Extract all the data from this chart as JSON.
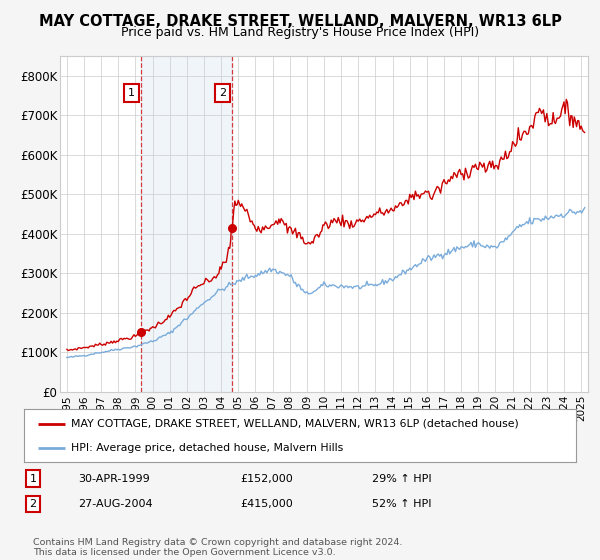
{
  "title": "MAY COTTAGE, DRAKE STREET, WELLAND, MALVERN, WR13 6LP",
  "subtitle": "Price paid vs. HM Land Registry's House Price Index (HPI)",
  "ylim": [
    0,
    850000
  ],
  "yticks": [
    0,
    100000,
    200000,
    300000,
    400000,
    500000,
    600000,
    700000,
    800000
  ],
  "ytick_labels": [
    "£0",
    "£100K",
    "£200K",
    "£300K",
    "£400K",
    "£500K",
    "£600K",
    "£700K",
    "£800K"
  ],
  "xlim_start": 1994.6,
  "xlim_end": 2025.4,
  "xtick_years": [
    1995,
    1996,
    1997,
    1998,
    1999,
    2000,
    2001,
    2002,
    2003,
    2004,
    2005,
    2006,
    2007,
    2008,
    2009,
    2010,
    2011,
    2012,
    2013,
    2014,
    2015,
    2016,
    2017,
    2018,
    2019,
    2020,
    2021,
    2022,
    2023,
    2024,
    2025
  ],
  "property_color": "#cc0000",
  "hpi_color": "#7aacdb",
  "background_color": "#f5f5f5",
  "sale1_x": 1999.33,
  "sale1_y": 152000,
  "sale2_x": 2004.65,
  "sale2_y": 415000,
  "shade_x1": 1999.33,
  "shade_x2": 2004.65,
  "legend_property": "MAY COTTAGE, DRAKE STREET, WELLAND, MALVERN, WR13 6LP (detached house)",
  "legend_hpi": "HPI: Average price, detached house, Malvern Hills",
  "table_rows": [
    {
      "num": "1",
      "date": "30-APR-1999",
      "price": "£152,000",
      "hpi": "29% ↑ HPI"
    },
    {
      "num": "2",
      "date": "27-AUG-2004",
      "price": "£415,000",
      "hpi": "52% ↑ HPI"
    }
  ],
  "footnote": "Contains HM Land Registry data © Crown copyright and database right 2024.\nThis data is licensed under the Open Government Licence v3.0."
}
